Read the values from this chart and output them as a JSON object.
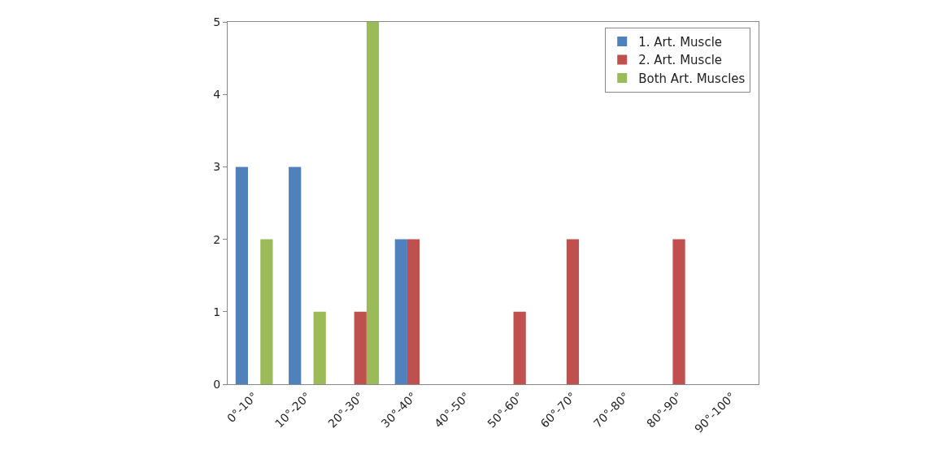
{
  "chart_data": {
    "type": "bar",
    "categories": [
      "0°-10°",
      "10°-20°",
      "20°-30°",
      "30°-40°",
      "40°-50°",
      "50°-60°",
      "60°-70°",
      "70°-80°",
      "80°-90°",
      "90°-100°"
    ],
    "series": [
      {
        "name": "1. Art. Muscle",
        "color": "#4f81bd",
        "values": [
          3,
          3,
          0,
          2,
          0,
          0,
          0,
          0,
          0,
          0
        ]
      },
      {
        "name": "2. Art. Muscle",
        "color": "#c0504d",
        "values": [
          0,
          0,
          1,
          2,
          0,
          1,
          2,
          0,
          2,
          0
        ]
      },
      {
        "name": "Both Art. Muscles",
        "color": "#9bbb59",
        "values": [
          2,
          1,
          5,
          0,
          0,
          0,
          0,
          0,
          0,
          0
        ]
      }
    ],
    "ylim": [
      0,
      5
    ],
    "yticks": [
      0,
      1,
      2,
      3,
      4,
      5
    ],
    "legend": "top right"
  }
}
